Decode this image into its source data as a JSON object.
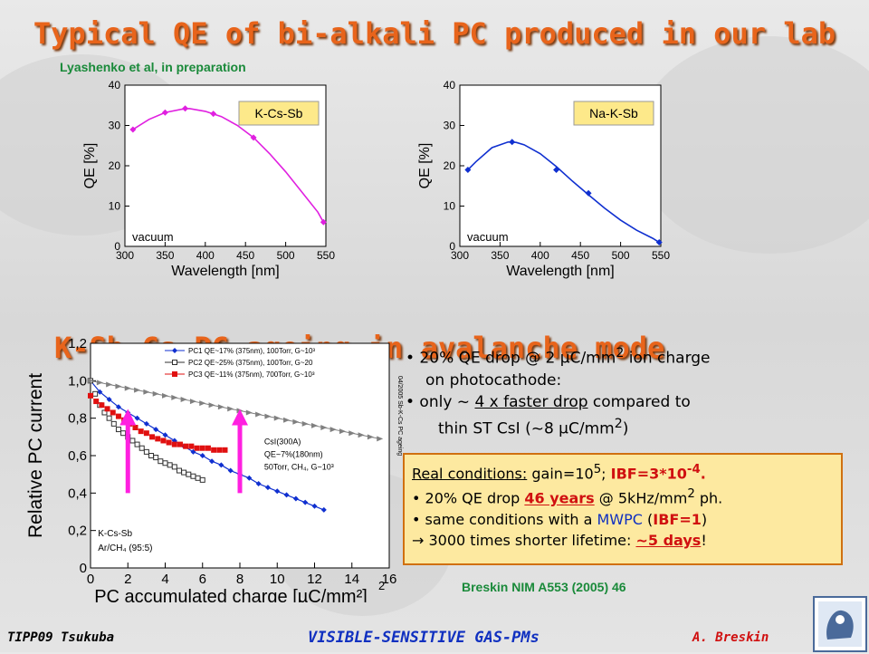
{
  "title": "Typical QE of bi-alkali PC produced in our lab",
  "ref_top": "Lyashenko et al, in preparation",
  "subtitle": "K-Sb-Cs PC ageing in avalanche mode",
  "chart_data": [
    {
      "type": "line",
      "label_box": "K-Cs-Sb",
      "note": "vacuum",
      "xlabel": "Wavelength [nm]",
      "ylabel": "QE [%]",
      "xlim": [
        300,
        550
      ],
      "ylim": [
        0,
        40
      ],
      "xticks": [
        "300",
        "350",
        "400",
        "450",
        "500",
        "550"
      ],
      "yticks": [
        "0",
        "10",
        "20",
        "30",
        "40"
      ],
      "color": "#e020e0",
      "curve": {
        "x": [
          310,
          330,
          350,
          370,
          380,
          400,
          420,
          440,
          460,
          480,
          500,
          520,
          540,
          547
        ],
        "y": [
          29,
          31.5,
          33.2,
          34.0,
          34.2,
          33.5,
          32.2,
          30.0,
          27.0,
          23.0,
          18.5,
          13.5,
          8.5,
          6.0
        ]
      },
      "markers": {
        "x": [
          310,
          350,
          375,
          410,
          460,
          547
        ],
        "y": [
          29,
          33.2,
          34.2,
          32.9,
          27.0,
          6.0
        ]
      }
    },
    {
      "type": "line",
      "label_box": "Na-K-Sb",
      "note": "vacuum",
      "xlabel": "Wavelength [nm]",
      "ylabel": "QE [%]",
      "xlim": [
        300,
        550
      ],
      "ylim": [
        0,
        40
      ],
      "xticks": [
        "300",
        "350",
        "400",
        "450",
        "500",
        "550"
      ],
      "yticks": [
        "0",
        "10",
        "20",
        "30",
        "40"
      ],
      "color": "#1030d0",
      "curve": {
        "x": [
          310,
          320,
          340,
          360,
          370,
          380,
          400,
          420,
          440,
          460,
          480,
          500,
          520,
          540,
          548
        ],
        "y": [
          19,
          21,
          24.5,
          25.9,
          25.8,
          25.2,
          23.0,
          19.8,
          16.2,
          12.8,
          9.5,
          6.5,
          4.0,
          2.0,
          1.0
        ]
      },
      "markers": {
        "x": [
          310,
          365,
          420,
          460,
          548
        ],
        "y": [
          19,
          25.9,
          19.0,
          13.2,
          1.0
        ]
      }
    },
    {
      "type": "scatter",
      "xlabel": "PC accumulated charge [µC/mm²]",
      "ylabel": "Relative PC current",
      "xlim": [
        0,
        16
      ],
      "ylim": [
        0,
        1.2
      ],
      "xticks": [
        "0",
        "2",
        "4",
        "6",
        "8",
        "10",
        "12",
        "14",
        "16"
      ],
      "yticks": [
        "0",
        "0,2",
        "0,4",
        "0,6",
        "0,8",
        "1,0",
        "1,2"
      ],
      "series": [
        {
          "name": "PC1 QE~17% (375nm), 100Torr, G~10³",
          "color": "#1030d0",
          "marker": "diamond",
          "x": [
            0,
            0.5,
            1,
            1.5,
            2,
            2.5,
            3,
            3.5,
            4,
            4.5,
            5,
            5.5,
            6,
            6.5,
            7,
            7.5,
            8,
            8.5,
            9,
            9.5,
            10,
            10.5,
            11,
            11.5,
            12,
            12.5
          ],
          "y": [
            1.0,
            0.94,
            0.9,
            0.86,
            0.83,
            0.8,
            0.77,
            0.74,
            0.71,
            0.68,
            0.65,
            0.62,
            0.6,
            0.57,
            0.55,
            0.52,
            0.5,
            0.48,
            0.45,
            0.43,
            0.41,
            0.39,
            0.37,
            0.35,
            0.33,
            0.31
          ]
        },
        {
          "name": "PC2 QE~25% (375nm), 100Torr, G~20",
          "color": "#303030",
          "marker": "square-open",
          "x": [
            0,
            0.25,
            0.5,
            0.75,
            1,
            1.25,
            1.5,
            1.75,
            2,
            2.25,
            2.5,
            2.75,
            3,
            3.25,
            3.5,
            3.75,
            4,
            4.25,
            4.5,
            4.75,
            5,
            5.25,
            5.5,
            5.75,
            6
          ],
          "y": [
            1.0,
            0.93,
            0.87,
            0.83,
            0.8,
            0.77,
            0.74,
            0.72,
            0.7,
            0.68,
            0.66,
            0.64,
            0.62,
            0.6,
            0.59,
            0.57,
            0.56,
            0.55,
            0.54,
            0.52,
            0.51,
            0.5,
            0.49,
            0.48,
            0.47
          ]
        },
        {
          "name": "PC3 QE~11% (375nm), 700Torr, G~10³",
          "color": "#e01010",
          "marker": "square",
          "x": [
            0,
            0.3,
            0.6,
            0.9,
            1.2,
            1.5,
            1.8,
            2.1,
            2.4,
            2.7,
            3,
            3.3,
            3.6,
            3.9,
            4.2,
            4.5,
            4.8,
            5.1,
            5.4,
            5.7,
            6,
            6.3,
            6.6,
            6.9,
            7.2
          ],
          "y": [
            0.92,
            0.89,
            0.87,
            0.85,
            0.83,
            0.81,
            0.79,
            0.77,
            0.75,
            0.73,
            0.72,
            0.7,
            0.69,
            0.68,
            0.67,
            0.66,
            0.66,
            0.65,
            0.65,
            0.64,
            0.64,
            0.64,
            0.63,
            0.63,
            0.63
          ]
        },
        {
          "name": "CsI(300A)",
          "color": "#808080",
          "marker": "triangle",
          "x": [
            0,
            0.5,
            1,
            1.5,
            2,
            2.5,
            3,
            3.5,
            4,
            4.5,
            5,
            5.5,
            6,
            6.5,
            7,
            7.5,
            8,
            8.5,
            9,
            9.5,
            10,
            10.5,
            11,
            11.5,
            12,
            12.5,
            13,
            13.5,
            14,
            14.5,
            15,
            15.5
          ],
          "y": [
            1.0,
            0.99,
            0.98,
            0.97,
            0.96,
            0.95,
            0.94,
            0.93,
            0.92,
            0.91,
            0.9,
            0.89,
            0.88,
            0.87,
            0.86,
            0.85,
            0.84,
            0.83,
            0.82,
            0.81,
            0.8,
            0.79,
            0.78,
            0.77,
            0.76,
            0.75,
            0.74,
            0.73,
            0.72,
            0.71,
            0.7,
            0.69
          ]
        }
      ],
      "legend": [
        "PC1 QE~17% (375nm), 100Torr, G~10³",
        "PC2 QE~25% (375nm), 100Torr, G~20",
        "PC3 QE~11% (375nm), 700Torr, G~10³"
      ],
      "csi_annotation": [
        "CsI(300A)",
        "QE~7%(180nm)",
        "50Torr, CH₄, G~10³"
      ],
      "gas_annotation": [
        "K-Cs-Sb",
        "Ar/CH₄ (95:5)"
      ],
      "arrows_x": [
        2,
        8
      ],
      "side_label": "04/2005 Sb-K-Cs PC ageing",
      "exp_mark": "2"
    }
  ],
  "bullets": {
    "b1_pre": "• 20% QE drop @ 2 µC/mm",
    "b1_sup": "2",
    "b1_post": " ion charge",
    "b1_line2": "on photocathode:",
    "b2_pre": "• only  ~ ",
    "b2_u": "4 x faster drop",
    "b2_post": " compared to",
    "b2_line2_pre": "thin ST CsI (~8 µC/mm",
    "b2_line2_sup": "2",
    "b2_line2_post": ")"
  },
  "box": {
    "l1_u": "Real conditions:",
    "l1_a": "  gain=10",
    "l1_sup": "5",
    "l1_b": "; ",
    "l1_red": "IBF=3*10",
    "l1_red_sup": "-4",
    "l1_end": ".",
    "l2_a": "• 20% QE drop ",
    "l2_red": "46 years",
    "l2_b": " @ 5kHz/mm",
    "l2_sup": "2",
    "l2_c": " ph.",
    "l3_a": "• same conditions with a ",
    "l3_blue": "MWPC",
    "l3_b": " (",
    "l3_red": "IBF=1",
    "l3_c": ")",
    "l4_a": "  3000 times shorter lifetime: ",
    "l4_red": "~5 days",
    "l4_c": "!"
  },
  "ref_bottom": "Breskin NIM A553 (2005) 46",
  "footer": {
    "left": "TIPP09 Tsukuba",
    "mid": "VISIBLE-SENSITIVE GAS-PMs",
    "right": "A. Breskin"
  }
}
